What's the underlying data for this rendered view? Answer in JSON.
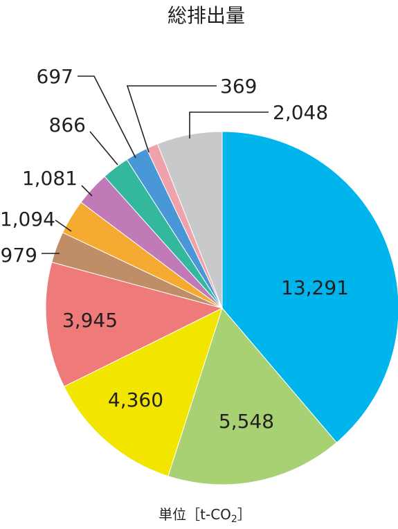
{
  "chart_data": {
    "type": "pie",
    "title": "総排出量",
    "unit_label": "単位［t-CO",
    "unit_subscript": "2",
    "unit_close": "］",
    "values": [
      13291,
      5548,
      4360,
      3945,
      979,
      1094,
      1081,
      866,
      697,
      369,
      2048
    ],
    "labels": [
      "13,291",
      "5,548",
      "4,360",
      "3,945",
      "979",
      "1,094",
      "1,081",
      "866",
      "697",
      "369",
      "2,048"
    ],
    "colors": [
      "#00b4ec",
      "#a8d174",
      "#f2e500",
      "#ee7a7a",
      "#c08e66",
      "#f5aa32",
      "#c07ab8",
      "#33b89e",
      "#4a97d8",
      "#f0a2ab",
      "#c8c9ca"
    ]
  }
}
